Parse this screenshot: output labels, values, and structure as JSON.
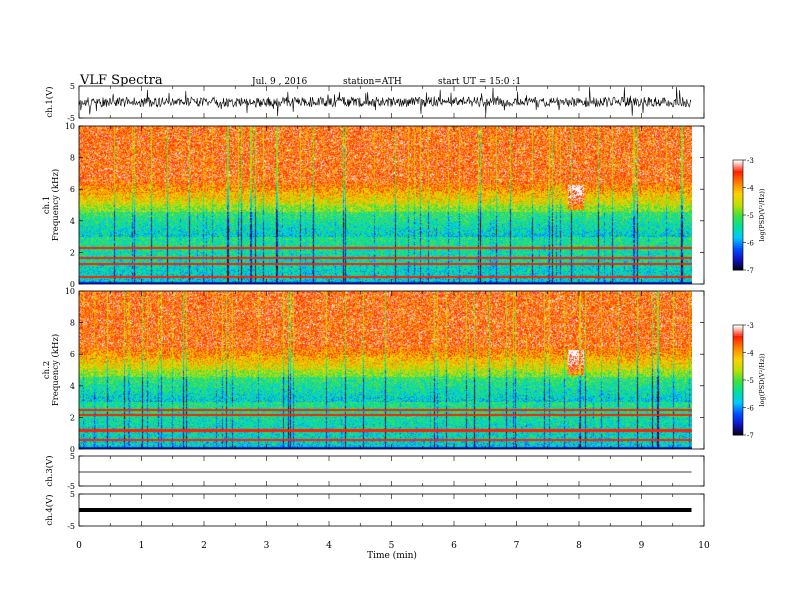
{
  "header": {
    "title": "VLF Spectra",
    "date": "Jul. 9 , 2016",
    "station": "station=ATH",
    "start": "start UT = 15:0 :1"
  },
  "chart_data": {
    "type": "heatmap",
    "xlabel": "Time (min)",
    "xlim": [
      0,
      10
    ],
    "x_ticks": [
      "0",
      "1",
      "2",
      "3",
      "4",
      "5",
      "6",
      "7",
      "8",
      "9",
      "10"
    ],
    "data_end_min": 9.8,
    "panels": [
      {
        "id": "ch1-wave",
        "ylabel": "ch.1(V)",
        "ylim": [
          -5,
          5
        ],
        "ticks": [
          "5",
          "-5"
        ],
        "kind": "waveform"
      },
      {
        "id": "ch1-spec",
        "ylabel_top": "ch.1",
        "ylabel": "Frequency (kHz)",
        "ylim": [
          0,
          10
        ],
        "ticks": [
          "0",
          "2",
          "4",
          "6",
          "8",
          "10"
        ],
        "kind": "spectrogram",
        "seed": 7
      },
      {
        "id": "ch2-spec",
        "ylabel_top": "ch.2",
        "ylabel": "Frequency (kHz)",
        "ylim": [
          0,
          10
        ],
        "ticks": [
          "0",
          "2",
          "4",
          "6",
          "8",
          "10"
        ],
        "kind": "spectrogram",
        "seed": 13
      },
      {
        "id": "ch3-wave",
        "ylabel": "ch.3(V)",
        "ylim": [
          -5,
          5
        ],
        "ticks": [
          "5",
          "-5"
        ],
        "kind": "flat"
      },
      {
        "id": "ch4-wave",
        "ylabel": "ch.4(V)",
        "ylim": [
          -5,
          5
        ],
        "ticks": [
          "5",
          "-5"
        ],
        "kind": "thick"
      }
    ],
    "colorbar": {
      "label": "log(PSD(V²/Hz))",
      "range": [
        -7,
        -3
      ],
      "ticks": [
        "-3",
        "-4",
        "-5",
        "-6",
        "-7"
      ],
      "colors": [
        "#000000",
        "#1010c0",
        "#0050ff",
        "#00c8ff",
        "#00e0a0",
        "#40e040",
        "#c0e000",
        "#ffd000",
        "#ff8000",
        "#ff2000",
        "#ffffff"
      ]
    },
    "features": {
      "burst_time_min": 7.95,
      "burst_freq_khz": 5.5,
      "tone_lines_khz_ch1": [
        0.45,
        1.3,
        1.7,
        2.3
      ],
      "tone_lines_khz_ch2": [
        0.6,
        1.2,
        2.2,
        2.5
      ]
    }
  }
}
